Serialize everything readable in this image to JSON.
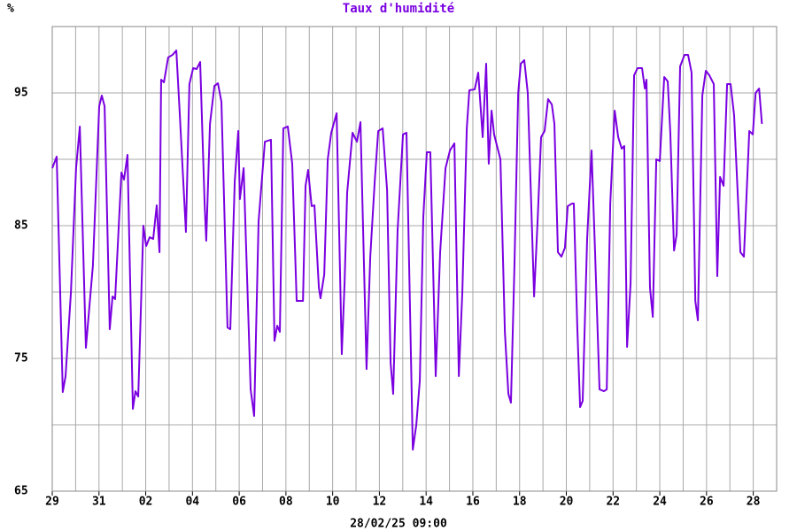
{
  "chart_data": {
    "type": "line",
    "title": "Taux d'humidité",
    "y_unit": "%",
    "x_label": "28/02/25 09:00",
    "xlim": [
      0,
      31
    ],
    "ylim": [
      65,
      100
    ],
    "xticks": [
      {
        "value": 0,
        "label": "29"
      },
      {
        "value": 2,
        "label": "31"
      },
      {
        "value": 4,
        "label": "02"
      },
      {
        "value": 6,
        "label": "04"
      },
      {
        "value": 8,
        "label": "06"
      },
      {
        "value": 10,
        "label": "08"
      },
      {
        "value": 12,
        "label": "10"
      },
      {
        "value": 14,
        "label": "12"
      },
      {
        "value": 16,
        "label": "14"
      },
      {
        "value": 18,
        "label": "16"
      },
      {
        "value": 20,
        "label": "18"
      },
      {
        "value": 22,
        "label": "20"
      },
      {
        "value": 24,
        "label": "22"
      },
      {
        "value": 26,
        "label": "24"
      },
      {
        "value": 28,
        "label": "26"
      },
      {
        "value": 30,
        "label": "28"
      }
    ],
    "x_minor_grid": [
      1,
      3,
      5,
      7,
      9,
      11,
      13,
      15,
      17,
      19,
      21,
      23,
      25,
      27,
      29,
      31
    ],
    "yticks": [
      65,
      75,
      85,
      95
    ],
    "y_minor_grid": [
      70,
      80,
      90,
      100
    ],
    "grid": true,
    "x": [
      0,
      0.19,
      0.45,
      0.57,
      0.8,
      1.02,
      1.18,
      1.44,
      1.74,
      2.01,
      2.12,
      2.24,
      2.46,
      2.58,
      2.69,
      2.96,
      3.07,
      3.22,
      3.45,
      3.56,
      3.68,
      3.9,
      4.02,
      4.17,
      4.32,
      4.47,
      4.59,
      4.66,
      4.78,
      4.96,
      5.15,
      5.31,
      5.46,
      5.72,
      5.87,
      6.03,
      6.18,
      6.33,
      6.52,
      6.59,
      6.75,
      6.94,
      7.09,
      7.24,
      7.5,
      7.62,
      7.81,
      7.96,
      8.03,
      8.19,
      8.49,
      8.64,
      8.83,
      9.1,
      9.36,
      9.51,
      9.63,
      9.74,
      9.89,
      10.08,
      10.27,
      10.46,
      10.61,
      10.73,
      10.84,
      10.95,
      11.1,
      11.22,
      11.41,
      11.48,
      11.64,
      11.79,
      11.94,
      12.17,
      12.39,
      12.51,
      12.62,
      12.85,
      13.04,
      13.19,
      13.45,
      13.61,
      13.8,
      13.95,
      14.14,
      14.33,
      14.48,
      14.59,
      14.78,
      15.01,
      15.16,
      15.43,
      15.58,
      15.73,
      15.88,
      16.03,
      16.18,
      16.41,
      16.6,
      16.83,
      17.02,
      17.21,
      17.4,
      17.55,
      17.74,
      17.85,
      18.08,
      18.23,
      18.42,
      18.57,
      18.68,
      18.8,
      18.91,
      19.18,
      19.37,
      19.52,
      19.63,
      19.78,
      19.94,
      20.05,
      20.2,
      20.35,
      20.62,
      20.77,
      20.92,
      21.07,
      21.22,
      21.38,
      21.49,
      21.64,
      21.79,
      21.94,
      22.06,
      22.25,
      22.32,
      22.47,
      22.59,
      22.7,
      22.89,
      23.08,
      23.23,
      23.42,
      23.61,
      23.73,
      23.88,
      24.07,
      24.22,
      24.37,
      24.48,
      24.6,
      24.75,
      24.9,
      25.05,
      25.24,
      25.36,
      25.43,
      25.58,
      25.7,
      25.85,
      26,
      26.19,
      26.34,
      26.45,
      26.61,
      26.72,
      26.87,
      27.06,
      27.21,
      27.36,
      27.52,
      27.63,
      27.82,
      27.97,
      28.12,
      28.31,
      28.46,
      28.58,
      28.73,
      28.88,
      29.03,
      29.18,
      29.45,
      29.6,
      29.83,
      29.98,
      30.1,
      30.25,
      30.37
    ],
    "series": [
      {
        "color": "#7a00e0",
        "values": [
          89.33,
          90.2,
          72.47,
          73.67,
          80,
          89.33,
          92.47,
          75.8,
          82,
          94,
          94.8,
          94,
          77.2,
          79.67,
          79.47,
          89,
          88.47,
          90.33,
          71.2,
          72.53,
          72.13,
          85,
          83.47,
          84.13,
          84,
          86.53,
          83,
          96,
          95.8,
          97.67,
          97.87,
          98.2,
          93.33,
          84.53,
          95.67,
          96.87,
          96.8,
          97.33,
          86.67,
          83.87,
          92.67,
          95.53,
          95.73,
          94.33,
          77.33,
          77.2,
          88.33,
          92.13,
          87,
          89.33,
          72.67,
          70.67,
          85.33,
          91.33,
          91.47,
          76.33,
          77.47,
          77,
          92.33,
          92.47,
          89.67,
          79.33,
          79.33,
          79.33,
          88,
          89.2,
          86.47,
          86.53,
          80.33,
          79.53,
          81.33,
          90,
          92,
          93.47,
          75.33,
          80.67,
          87.47,
          92,
          91.33,
          92.8,
          74.2,
          82.67,
          88.33,
          92.13,
          92.33,
          87.67,
          74.67,
          72.33,
          84.67,
          91.87,
          92,
          68.13,
          70,
          73.33,
          85.67,
          90.53,
          90.53,
          73.67,
          83,
          89.33,
          90.67,
          91.2,
          73.67,
          80,
          92.33,
          95.2,
          95.27,
          96.53,
          91.67,
          97.2,
          89.67,
          93.67,
          91.87,
          90,
          77,
          72.33,
          71.67,
          82,
          95,
          97.2,
          97.47,
          95,
          79.67,
          85.33,
          91.67,
          92.13,
          94.53,
          94.13,
          92.67,
          83,
          82.67,
          83.33,
          86.47,
          86.67,
          86.67,
          77.33,
          71.33,
          71.8,
          84,
          90.67,
          83,
          72.67,
          72.53,
          72.67,
          86.67,
          93.67,
          91.67,
          90.8,
          91,
          75.87,
          80.67,
          96.33,
          96.87,
          96.87,
          95.33,
          96,
          80.33,
          78.13,
          90,
          89.87,
          96.2,
          95.87,
          92,
          83.13,
          84.33,
          97,
          97.87,
          97.87,
          96.53,
          79.33,
          77.87,
          94.8,
          96.67,
          96.33,
          95.67,
          81.2,
          88.67,
          88,
          95.67,
          95.67,
          93.33,
          83,
          82.67,
          92.13,
          91.87,
          95,
          95.33,
          92.67
        ]
      }
    ]
  }
}
